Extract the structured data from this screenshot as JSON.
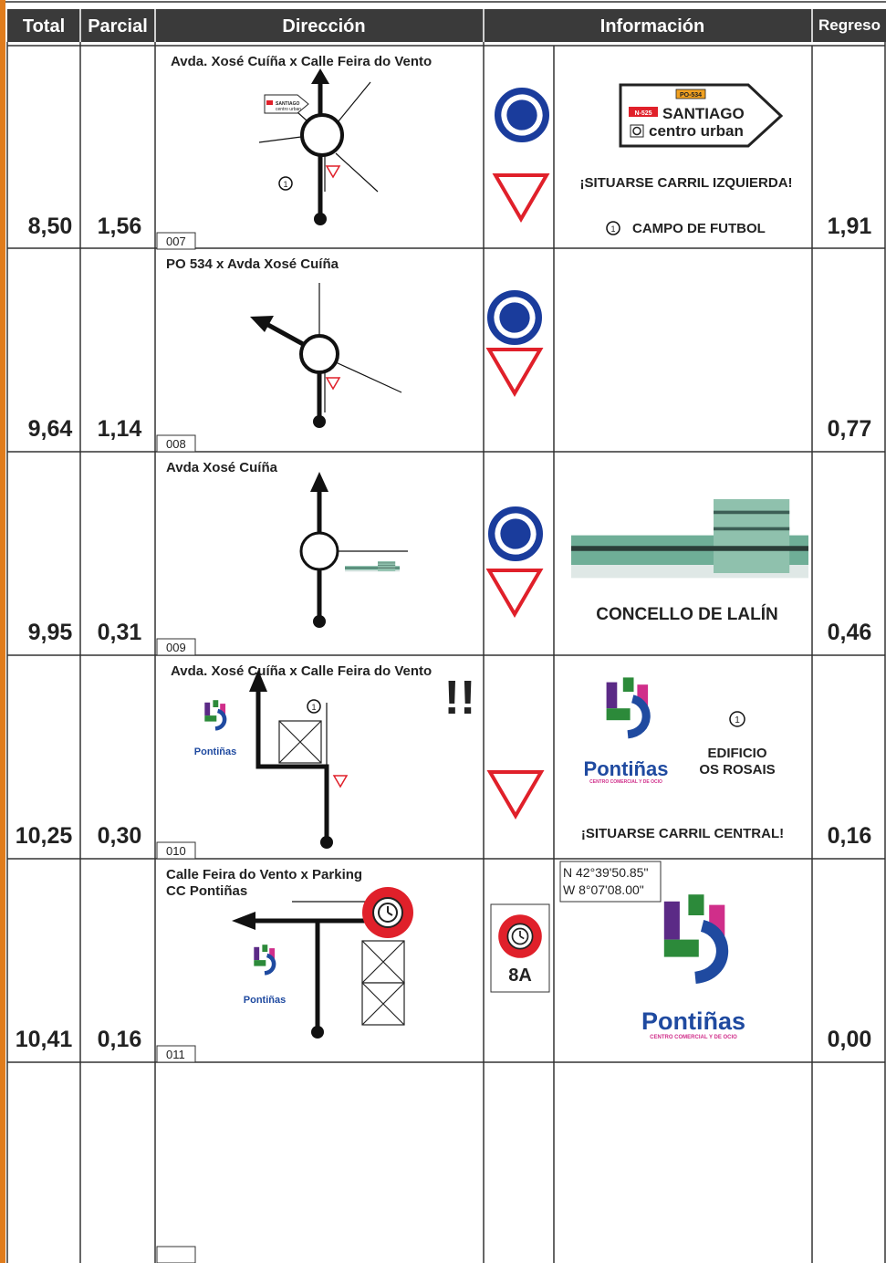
{
  "header": {
    "columns": [
      "Total",
      "Parcial",
      "Dirección",
      "Información",
      "Regreso"
    ]
  },
  "rows": [
    {
      "total": "8,50",
      "partial": "1,56",
      "regreso": "1,91",
      "number": "007",
      "title": [
        "Avda. Xosé Cuíña x Calle Feira do Vento"
      ],
      "marker": "1",
      "diagram_sign": [
        "SANTIAGO",
        "centro urban"
      ],
      "direction_sign": {
        "road": "PO-534",
        "route": "N-525",
        "lines": [
          "SANTIAGO",
          "centro urban"
        ]
      },
      "info": "¡SITUARSE CARRIL IZQUIERDA!",
      "note": {
        "marker": "1",
        "text": "CAMPO DE FUTBOL"
      }
    },
    {
      "total": "9,64",
      "partial": "1,14",
      "regreso": "0,77",
      "number": "008",
      "title": [
        "PO 534 x Avda Xosé Cuíña"
      ]
    },
    {
      "total": "9,95",
      "partial": "0,31",
      "regreso": "0,46",
      "number": "009",
      "title": [
        "Avda Xosé Cuíña"
      ],
      "info": "CONCELLO DE LALÍN"
    },
    {
      "total": "10,25",
      "partial": "0,30",
      "regreso": "0,16",
      "number": "010",
      "title": [
        "Avda. Xosé Cuíña x Calle Feira do Vento"
      ],
      "warning": "!!",
      "marker": "1",
      "logo": "Pontiñas",
      "info_logo": {
        "name": "Pontiñas",
        "tagline": "CENTRO COMERCIAL Y DE OCIO"
      },
      "note": {
        "marker": "1",
        "lines": [
          "EDIFICIO",
          "OS ROSAIS"
        ]
      },
      "info": "¡SITUARSE CARRIL CENTRAL!"
    },
    {
      "total": "10,41",
      "partial": "0,16",
      "regreso": "0,00",
      "number": "011",
      "title": [
        "Calle Feira do Vento x Parking",
        "CC Pontiñas"
      ],
      "logo": "Pontiñas",
      "sign": "8A",
      "coordinates": [
        "N 42°39'50.85\"",
        "W 8°07'08.00\""
      ],
      "info_logo": {
        "name": "Pontiñas",
        "tagline": "CENTRO COMERCIAL Y DE OCIO"
      }
    }
  ]
}
